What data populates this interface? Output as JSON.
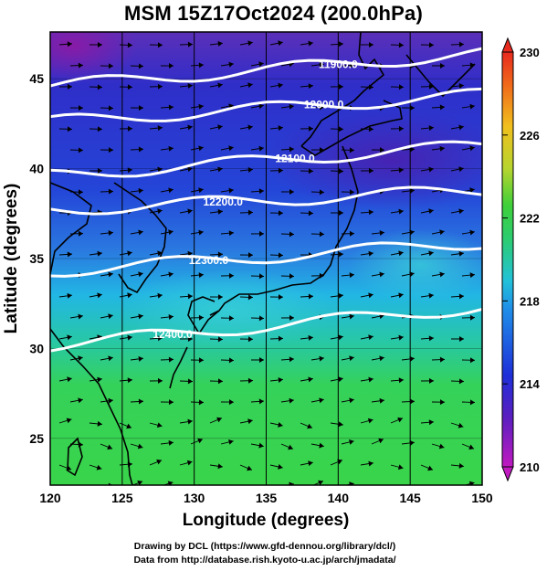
{
  "title": "MSM 15Z17Oct2024 (200.0hPa)",
  "axes": {
    "xlabel": "Longitude (degrees)",
    "ylabel": "Latitude  (degrees)",
    "x_ticks": [
      "120",
      "125",
      "130",
      "135",
      "140",
      "145",
      "150"
    ],
    "y_ticks": [
      "25",
      "30",
      "35",
      "40",
      "45"
    ]
  },
  "colorbar": {
    "ticks": [
      "230",
      "226",
      "222",
      "218",
      "214",
      "210"
    ]
  },
  "credits": {
    "line1": "Drawing by DCL (https://www.gfd-dennou.org/library/dcl/)",
    "line2": "Data from http://database.rish.kyoto-u.ac.jp/arch/jmadata/"
  },
  "chart_data": {
    "type": "heatmap",
    "title": "MSM 15Z17Oct2024 (200.0hPa)",
    "xlabel": "Longitude (degrees)",
    "ylabel": "Latitude  (degrees)",
    "xlim": [
      120,
      150
    ],
    "ylim": [
      22.4,
      47.6
    ],
    "colorbar_range": [
      210,
      230
    ],
    "colorbar_ticks": [
      210,
      214,
      218,
      222,
      226,
      230
    ],
    "height_contours": [
      {
        "label": "11900.0",
        "lat_west": 44.6,
        "lat_east": 46.4
      },
      {
        "label": "12000.0",
        "lat_west": 42.6,
        "lat_east": 44.1
      },
      {
        "label": "12100.0",
        "lat_west": 39.6,
        "lat_east": 41.3
      },
      {
        "label": "12200.0",
        "lat_west": 37.7,
        "lat_east": 38.8
      },
      {
        "label": "12300.0",
        "lat_west": 34.3,
        "lat_east": 35.9
      },
      {
        "label": "12400.0",
        "lat_west": 30.2,
        "lat_east": 32.3
      }
    ],
    "grid": true
  },
  "colors": {
    "cold": "#2a28c8",
    "mid": "#22b4e6",
    "warm": "#39d24a",
    "contour": "#ffffff",
    "arrow": "#000000"
  }
}
